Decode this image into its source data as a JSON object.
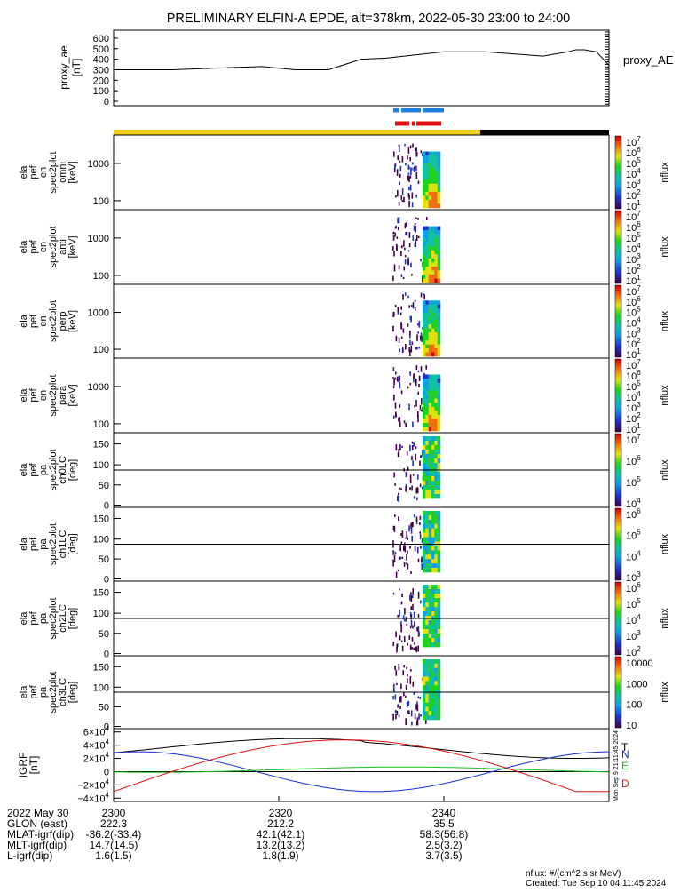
{
  "title": "PRELIMINARY ELFIN-A EPDE, alt=378km, 2022-05-30 23:00 to 24:00",
  "chart_data": [
    {
      "type": "line",
      "panel": "proxy_ae",
      "ylabel_lines": [
        "proxy_ae",
        "[nT]"
      ],
      "legend": "proxy_AE",
      "ylim": [
        0,
        650
      ],
      "yticks": [
        "0",
        "100",
        "200",
        "300",
        "400",
        "500",
        "600"
      ],
      "series": [
        {
          "x_min": [
            0,
            7,
            12,
            18,
            22,
            26,
            30,
            33,
            40,
            45,
            52,
            55,
            56,
            57,
            58.5,
            60
          ],
          "values": [
            300,
            300,
            315,
            330,
            300,
            300,
            400,
            410,
            470,
            470,
            430,
            470,
            490,
            490,
            470,
            340
          ]
        }
      ]
    },
    {
      "type": "heatmap",
      "panel": "en_spec2plot_omni",
      "ylabel_lines": [
        "ela",
        "pef",
        "en",
        "spec2plot",
        "omni",
        "[keV]"
      ],
      "yticks": [
        "1000",
        "100"
      ],
      "scale": "log",
      "zlabel": "nflux",
      "colorbar_ticks": [
        "10^7",
        "10^6",
        "10^5",
        "10^4",
        "10^3",
        "10^2",
        "10^1"
      ]
    },
    {
      "type": "heatmap",
      "panel": "en_spec2plot_anti",
      "ylabel_lines": [
        "ela",
        "pef",
        "en",
        "spec2plot",
        "anti",
        "[keV]"
      ],
      "yticks": [
        "1000",
        "100"
      ],
      "scale": "log",
      "zlabel": "nflux",
      "colorbar_ticks": [
        "10^7",
        "10^6",
        "10^5",
        "10^4",
        "10^3",
        "10^2",
        "10^1"
      ]
    },
    {
      "type": "heatmap",
      "panel": "en_spec2plot_perp",
      "ylabel_lines": [
        "ela",
        "pef",
        "en",
        "spec2plot",
        "perp",
        "[keV]"
      ],
      "yticks": [
        "1000",
        "100"
      ],
      "scale": "log",
      "zlabel": "nflux",
      "colorbar_ticks": [
        "10^7",
        "10^6",
        "10^5",
        "10^4",
        "10^3",
        "10^2",
        "10^1"
      ]
    },
    {
      "type": "heatmap",
      "panel": "en_spec2plot_para",
      "ylabel_lines": [
        "ela",
        "pef",
        "en",
        "spec2plot",
        "para",
        "[keV]"
      ],
      "yticks": [
        "1000",
        "100"
      ],
      "scale": "log",
      "zlabel": "nflux",
      "colorbar_ticks": [
        "10^7",
        "10^6",
        "10^5",
        "10^4",
        "10^3",
        "10^2",
        "10^1"
      ]
    },
    {
      "type": "heatmap",
      "panel": "pa_spec2plot_ch0LC",
      "ylabel_lines": [
        "ela",
        "pef",
        "pa",
        "spec2plot",
        "ch0LC",
        "[deg]"
      ],
      "yticks": [
        "150",
        "100",
        "50",
        "0"
      ],
      "scale": "log",
      "zlabel": "nflux",
      "colorbar_ticks": [
        "10^7",
        "10^6",
        "10^5",
        "10^4"
      ]
    },
    {
      "type": "heatmap",
      "panel": "pa_spec2plot_ch1LC",
      "ylabel_lines": [
        "ela",
        "pef",
        "pa",
        "spec2plot",
        "ch1LC",
        "[deg]"
      ],
      "yticks": [
        "150",
        "100",
        "50",
        "0"
      ],
      "scale": "log",
      "zlabel": "nflux",
      "colorbar_ticks": [
        "10^6",
        "10^5",
        "10^4",
        "10^3"
      ]
    },
    {
      "type": "heatmap",
      "panel": "pa_spec2plot_ch2LC",
      "ylabel_lines": [
        "ela",
        "pef",
        "pa",
        "spec2plot",
        "ch2LC",
        "[deg]"
      ],
      "yticks": [
        "150",
        "100",
        "50",
        "0"
      ],
      "scale": "log",
      "zlabel": "nflux",
      "colorbar_ticks": [
        "10^6",
        "10^5",
        "10^4",
        "10^3",
        "10^2"
      ]
    },
    {
      "type": "heatmap",
      "panel": "pa_spec2plot_ch3LC",
      "ylabel_lines": [
        "ela",
        "pef",
        "pa",
        "spec2plot",
        "ch3LC",
        "[deg]"
      ],
      "yticks": [
        "150",
        "100",
        "50",
        "0"
      ],
      "scale": "log",
      "zlabel": "nflux",
      "colorbar_ticks": [
        "10000",
        "1000",
        "100",
        "10"
      ]
    },
    {
      "type": "line",
      "panel": "igrf",
      "ylabel_lines": [
        "IGRF",
        "[nT]"
      ],
      "ylim": [
        -45000,
        65000
      ],
      "yticks": [
        {
          "v": 60000,
          "label": "6×10^4"
        },
        {
          "v": 40000,
          "label": "4×10^4"
        },
        {
          "v": 20000,
          "label": "2×10^4"
        },
        {
          "v": 0,
          "label": "0"
        },
        {
          "v": -20000,
          "label": "−2×10^4"
        },
        {
          "v": -40000,
          "label": "−4×10^4"
        }
      ],
      "series": [
        {
          "name": "T",
          "color": "#000000"
        },
        {
          "name": "N",
          "color": "#1030d0"
        },
        {
          "name": "E",
          "color": "#18c018"
        },
        {
          "name": "D",
          "color": "#e01010"
        }
      ]
    }
  ],
  "xaxis": {
    "row_labels": [
      "2022 May 30",
      "GLON (east)",
      "MLAT-igrf(dip)",
      "MLT-igrf(dip)",
      "L-igrf(dip)"
    ],
    "columns": [
      {
        "values": [
          "2300",
          "222.3",
          "-36.2(-33.4)",
          "14.7(14.5)",
          "1.6(1.5)"
        ]
      },
      {
        "values": [
          "2320",
          "212.2",
          "42.1(42.1)",
          "13.2(13.2)",
          "1.8(1.9)"
        ]
      },
      {
        "values": [
          "2340",
          "35.5",
          "58.3(56.8)",
          "2.5(3.2)",
          "3.7(3.5)"
        ]
      }
    ]
  },
  "footer": {
    "units": "nflux: #/(cm^2 s sr MeV)",
    "created": "Created: Tue Sep 10 04:11:45 2024",
    "side_stamp": "Mon Sep 9 21:11:45 2024"
  },
  "colors": {
    "yellow_bar": "#f0d010",
    "black_bar": "#000000",
    "blue_bar": "#2080e0",
    "red_bar": "#e01010"
  }
}
